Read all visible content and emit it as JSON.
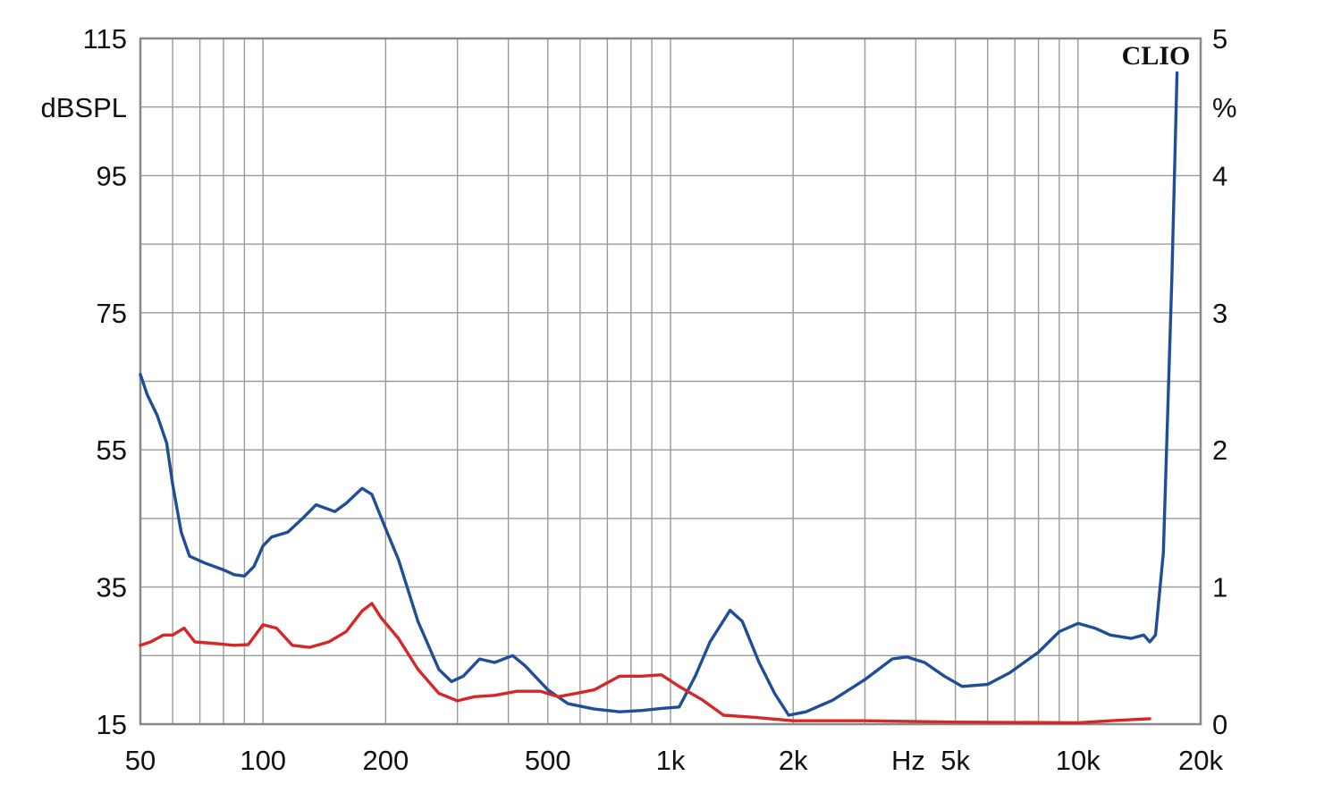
{
  "chart_data": {
    "type": "line",
    "x_scale": "log",
    "xlim": [
      50,
      20000
    ],
    "ylim_left": [
      15,
      115
    ],
    "ylim_right": [
      0,
      5
    ],
    "grid": true,
    "left_unit": "dBSPL",
    "right_unit": "%",
    "x_unit": "Hz",
    "brand": "CLIO",
    "x_ticks": [
      {
        "value": 50,
        "label": "50"
      },
      {
        "value": 100,
        "label": "100"
      },
      {
        "value": 200,
        "label": "200"
      },
      {
        "value": 500,
        "label": "500"
      },
      {
        "value": 1000,
        "label": "1k"
      },
      {
        "value": 2000,
        "label": "2k"
      },
      {
        "value": 5000,
        "label": "5k"
      },
      {
        "value": 10000,
        "label": "10k"
      },
      {
        "value": 20000,
        "label": "20k"
      }
    ],
    "y_left_ticks": [
      {
        "value": 115,
        "label": "115"
      },
      {
        "value": 95,
        "label": "95"
      },
      {
        "value": 75,
        "label": "75"
      },
      {
        "value": 55,
        "label": "55"
      },
      {
        "value": 35,
        "label": "35"
      },
      {
        "value": 15,
        "label": "15"
      }
    ],
    "y_right_ticks": [
      {
        "value": 5,
        "label": "5"
      },
      {
        "value": 4,
        "label": "4"
      },
      {
        "value": 3,
        "label": "3"
      },
      {
        "value": 2,
        "label": "2"
      },
      {
        "value": 1,
        "label": "1"
      },
      {
        "value": 0,
        "label": "0"
      }
    ],
    "colors": {
      "blue": "#1f4e96",
      "red": "#d62728",
      "grid": "#9a9a9a",
      "frame": "#888888"
    },
    "series": [
      {
        "color": "#1f4e96",
        "axis": "left",
        "points": [
          [
            50,
            66
          ],
          [
            52,
            63
          ],
          [
            55,
            60
          ],
          [
            58,
            56
          ],
          [
            60,
            50
          ],
          [
            63,
            43
          ],
          [
            66,
            39.5
          ],
          [
            72,
            38.5
          ],
          [
            80,
            37.5
          ],
          [
            85,
            36.8
          ],
          [
            90,
            36.6
          ],
          [
            95,
            38
          ],
          [
            100,
            41
          ],
          [
            105,
            42.3
          ],
          [
            115,
            43
          ],
          [
            125,
            45
          ],
          [
            135,
            47
          ],
          [
            150,
            46
          ],
          [
            160,
            47.2
          ],
          [
            175,
            49.4
          ],
          [
            185,
            48.5
          ],
          [
            200,
            43.5
          ],
          [
            215,
            39
          ],
          [
            240,
            30
          ],
          [
            270,
            23
          ],
          [
            290,
            21.2
          ],
          [
            310,
            22
          ],
          [
            340,
            24.5
          ],
          [
            370,
            24
          ],
          [
            410,
            25
          ],
          [
            440,
            23.5
          ],
          [
            500,
            20
          ],
          [
            560,
            18
          ],
          [
            650,
            17.2
          ],
          [
            750,
            16.8
          ],
          [
            850,
            17
          ],
          [
            950,
            17.3
          ],
          [
            1050,
            17.5
          ],
          [
            1150,
            22
          ],
          [
            1250,
            27
          ],
          [
            1400,
            31.6
          ],
          [
            1500,
            30
          ],
          [
            1650,
            24
          ],
          [
            1800,
            19.5
          ],
          [
            1950,
            16.3
          ],
          [
            2150,
            16.8
          ],
          [
            2500,
            18.5
          ],
          [
            3000,
            21.5
          ],
          [
            3500,
            24.5
          ],
          [
            3800,
            24.8
          ],
          [
            4200,
            24
          ],
          [
            4700,
            22
          ],
          [
            5200,
            20.5
          ],
          [
            6000,
            20.8
          ],
          [
            6800,
            22.5
          ],
          [
            8000,
            25.5
          ],
          [
            9000,
            28.5
          ],
          [
            10000,
            29.7
          ],
          [
            11000,
            29
          ],
          [
            12000,
            28
          ],
          [
            13500,
            27.5
          ],
          [
            14500,
            28
          ],
          [
            15000,
            27
          ],
          [
            15500,
            28
          ],
          [
            16200,
            40
          ],
          [
            17000,
            80
          ],
          [
            17500,
            110
          ]
        ]
      },
      {
        "color": "#d62728",
        "axis": "left",
        "points": [
          [
            50,
            26.5
          ],
          [
            53,
            27
          ],
          [
            57,
            28
          ],
          [
            60,
            28
          ],
          [
            64,
            29
          ],
          [
            68,
            27
          ],
          [
            75,
            26.8
          ],
          [
            85,
            26.5
          ],
          [
            92,
            26.6
          ],
          [
            100,
            29.5
          ],
          [
            108,
            29
          ],
          [
            118,
            26.5
          ],
          [
            130,
            26.2
          ],
          [
            145,
            27
          ],
          [
            160,
            28.5
          ],
          [
            175,
            31.5
          ],
          [
            185,
            32.6
          ],
          [
            195,
            30.5
          ],
          [
            215,
            27.5
          ],
          [
            240,
            23
          ],
          [
            270,
            19.5
          ],
          [
            300,
            18.4
          ],
          [
            330,
            19
          ],
          [
            370,
            19.2
          ],
          [
            420,
            19.8
          ],
          [
            480,
            19.8
          ],
          [
            530,
            19
          ],
          [
            600,
            19.6
          ],
          [
            650,
            20
          ],
          [
            750,
            22
          ],
          [
            850,
            22
          ],
          [
            950,
            22.2
          ],
          [
            1050,
            20.5
          ],
          [
            1200,
            18.5
          ],
          [
            1350,
            16.3
          ],
          [
            1600,
            16
          ],
          [
            2000,
            15.5
          ],
          [
            3000,
            15.5
          ],
          [
            5000,
            15.3
          ],
          [
            10000,
            15.2
          ],
          [
            12000,
            15.5
          ],
          [
            15000,
            15.8
          ]
        ]
      }
    ]
  }
}
